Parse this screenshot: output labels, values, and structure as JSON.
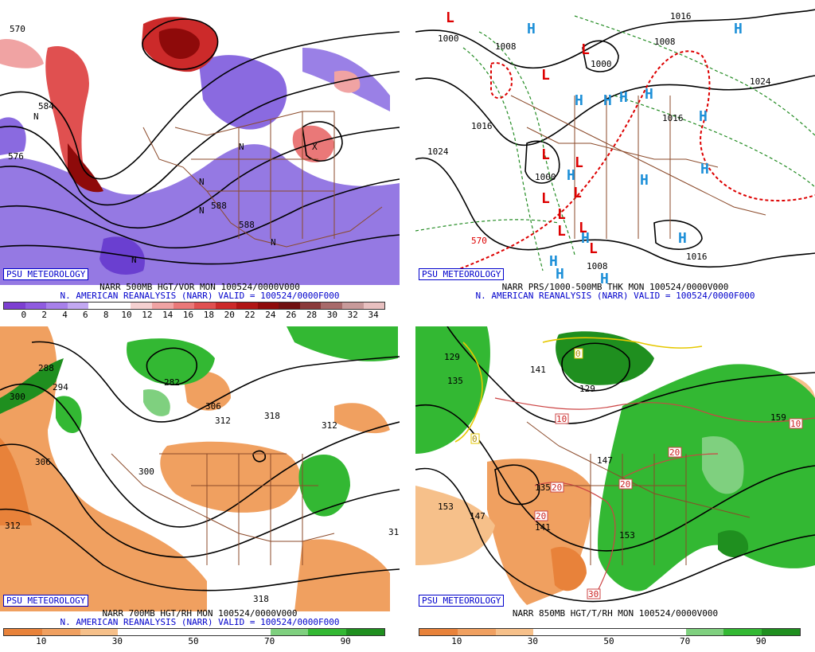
{
  "panels": [
    {
      "badge": "PSU METEOROLOGY",
      "title": "NARR 500MB HGT/VOR MON 100524/0000V000",
      "subtitle": "N. AMERICAN REANALYSIS (NARR) VALID = 100524/0000F000",
      "colorbar": {
        "colors": [
          "#7d3fd1",
          "#8f5be0",
          "#a780ea",
          "#c2a8f2",
          "#ffffff",
          "#ffffff",
          "#f5d0d0",
          "#f0a3a3",
          "#ea7878",
          "#e05050",
          "#cc2a2a",
          "#b01515",
          "#8e0a0a",
          "#701010",
          "#8a3a3a",
          "#a86a6a",
          "#c89a9a",
          "#e8c0c0"
        ],
        "ticks": [
          "0",
          "2",
          "4",
          "6",
          "8",
          "10",
          "12",
          "14",
          "16",
          "18",
          "20",
          "22",
          "24",
          "26",
          "28",
          "30",
          "32",
          "34"
        ]
      },
      "map_labels": [
        "576",
        "588",
        "588",
        "584",
        "570",
        "N",
        "N",
        "N",
        "N",
        "X",
        "N",
        "N"
      ]
    },
    {
      "badge": "PSU METEOROLOGY",
      "title": "NARR PRS/1000-500MB THK MON 100524/0000V000",
      "subtitle": "N. AMERICAN REANALYSIS (NARR) VALID = 100524/0000F000",
      "colorbar": null,
      "map_labels": [
        "1000",
        "1008",
        "1016",
        "1024",
        "1008",
        "1000",
        "1016",
        "1024",
        "1016",
        "1008",
        "1000",
        "1016",
        "570",
        "L",
        "H"
      ]
    },
    {
      "badge": "PSU METEOROLOGY",
      "title": "NARR 700MB HGT/RH MON 100524/0000V000",
      "subtitle": "N. AMERICAN REANALYSIS (NARR) VALID = 100524/0000F000",
      "colorbar": {
        "colors": [
          "#e8823a",
          "#f0a060",
          "#f6c08a",
          "#ffffff",
          "#ffffff",
          "#ffffff",
          "#ffffff",
          "#7fd07f",
          "#33b833",
          "#1f8f1f"
        ],
        "ticks": [
          "10",
          "30",
          "50",
          "70",
          "90"
        ]
      },
      "map_labels": [
        "288",
        "300",
        "306",
        "312",
        "294",
        "282",
        "300",
        "306",
        "312",
        "318",
        "318",
        "312",
        "31"
      ]
    },
    {
      "badge": "PSU METEOROLOGY",
      "title": "NARR 850MB HGT/T/RH MON 100524/0000V000",
      "subtitle": "",
      "colorbar": {
        "colors": [
          "#e8823a",
          "#f0a060",
          "#f6c08a",
          "#ffffff",
          "#ffffff",
          "#ffffff",
          "#ffffff",
          "#7fd07f",
          "#33b833",
          "#1f8f1f"
        ],
        "ticks": [
          "10",
          "30",
          "50",
          "70",
          "90"
        ]
      },
      "map_labels": [
        "129",
        "135",
        "153",
        "147",
        "141",
        "135",
        "129",
        "147",
        "153",
        "159",
        "141",
        "0",
        "0",
        "10",
        "20",
        "20",
        "20",
        "30",
        "10",
        "20"
      ]
    }
  ],
  "legend_colors": {
    "vorticity_red": "#cc2a2a",
    "vorticity_purple": "#8a6ae0",
    "rh_green": "#33b833",
    "rh_orange": "#f0a060",
    "low_red": "#dd0000",
    "high_blue": "#1e90d8",
    "thickness_green": "#228b22",
    "map_brown": "#8b4a2a"
  }
}
